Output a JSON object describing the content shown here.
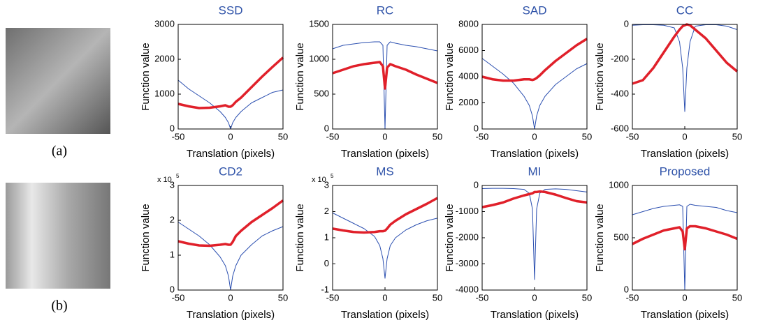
{
  "image_captions": [
    "(a)",
    "(b)"
  ],
  "chart_data": [
    {
      "type": "line",
      "title": "SSD",
      "xlabel": "Translation (pixels)",
      "ylabel": "Function value",
      "x": [
        -50,
        -40,
        -30,
        -20,
        -10,
        -5,
        -2,
        0,
        2,
        5,
        10,
        20,
        30,
        40,
        50
      ],
      "series": [
        {
          "color": "#2b4fb0",
          "values": [
            1400,
            1150,
            950,
            750,
            500,
            330,
            180,
            0,
            180,
            330,
            500,
            750,
            900,
            1050,
            1120
          ]
        },
        {
          "color": "#e0202a",
          "values": [
            720,
            650,
            600,
            610,
            650,
            680,
            640,
            640,
            680,
            780,
            900,
            1200,
            1500,
            1780,
            2050
          ]
        }
      ],
      "xlim": [
        -50,
        50
      ],
      "xticks": [
        -50,
        0,
        50
      ],
      "ylim": [
        0,
        3000
      ],
      "yticks": [
        0,
        1000,
        2000,
        3000
      ]
    },
    {
      "type": "line",
      "title": "RC",
      "xlabel": "Translation (pixels)",
      "ylabel": "Function value",
      "x": [
        -50,
        -40,
        -30,
        -20,
        -10,
        -5,
        -2,
        0,
        2,
        5,
        10,
        20,
        30,
        40,
        50
      ],
      "series": [
        {
          "color": "#2b4fb0",
          "values": [
            1150,
            1200,
            1220,
            1240,
            1250,
            1250,
            1200,
            0,
            1200,
            1250,
            1230,
            1200,
            1180,
            1150,
            1120
          ]
        },
        {
          "color": "#e0202a",
          "values": [
            800,
            850,
            900,
            930,
            950,
            960,
            900,
            580,
            880,
            930,
            900,
            850,
            780,
            720,
            660
          ]
        }
      ],
      "xlim": [
        -50,
        50
      ],
      "xticks": [
        -50,
        0,
        50
      ],
      "ylim": [
        0,
        1500
      ],
      "yticks": [
        0,
        500,
        1000,
        1500
      ]
    },
    {
      "type": "line",
      "title": "SAD",
      "xlabel": "Translation (pixels)",
      "ylabel": "Function value",
      "x": [
        -50,
        -40,
        -30,
        -20,
        -10,
        -5,
        -2,
        0,
        2,
        5,
        10,
        20,
        30,
        40,
        50
      ],
      "series": [
        {
          "color": "#2b4fb0",
          "values": [
            5400,
            4800,
            4200,
            3500,
            2500,
            1800,
            1000,
            0,
            1000,
            1800,
            2500,
            3400,
            4000,
            4600,
            5000
          ]
        },
        {
          "color": "#e0202a",
          "values": [
            4000,
            3800,
            3700,
            3700,
            3800,
            3800,
            3750,
            3800,
            3900,
            4100,
            4500,
            5200,
            5800,
            6400,
            6900
          ]
        }
      ],
      "xlim": [
        -50,
        50
      ],
      "xticks": [
        -50,
        0,
        50
      ],
      "ylim": [
        0,
        8000
      ],
      "yticks": [
        0,
        2000,
        4000,
        6000,
        8000
      ]
    },
    {
      "type": "line",
      "title": "CC",
      "xlabel": "Translation (pixels)",
      "ylabel": "Function value",
      "x": [
        -50,
        -40,
        -30,
        -20,
        -10,
        -5,
        -2,
        0,
        2,
        5,
        10,
        20,
        30,
        40,
        50
      ],
      "series": [
        {
          "color": "#2b4fb0",
          "values": [
            -5,
            -2,
            -2,
            -5,
            -20,
            -100,
            -250,
            -500,
            -250,
            -100,
            -10,
            -2,
            -2,
            -10,
            -30
          ]
        },
        {
          "color": "#e0202a",
          "values": [
            -340,
            -320,
            -250,
            -160,
            -70,
            -30,
            -10,
            -5,
            0,
            -5,
            -30,
            -80,
            -150,
            -220,
            -270
          ]
        }
      ],
      "xlim": [
        -50,
        50
      ],
      "xticks": [
        -50,
        0,
        50
      ],
      "ylim": [
        -600,
        0
      ],
      "yticks": [
        -600,
        -400,
        -200,
        0
      ]
    },
    {
      "type": "line",
      "title": "CD2",
      "xlabel": "Translation (pixels)",
      "ylabel": "Function value",
      "y_scale_label": {
        "text": "x 10",
        "exponent": "5"
      },
      "x": [
        -50,
        -40,
        -30,
        -20,
        -10,
        -5,
        -2,
        0,
        2,
        5,
        10,
        20,
        30,
        40,
        50
      ],
      "series": [
        {
          "color": "#2b4fb0",
          "values": [
            1.95,
            1.75,
            1.55,
            1.3,
            0.95,
            0.7,
            0.4,
            0,
            0.4,
            0.7,
            1.0,
            1.3,
            1.55,
            1.7,
            1.82
          ]
        },
        {
          "color": "#e0202a",
          "values": [
            1.4,
            1.33,
            1.28,
            1.27,
            1.3,
            1.32,
            1.3,
            1.3,
            1.38,
            1.55,
            1.7,
            1.95,
            2.15,
            2.35,
            2.57
          ]
        }
      ],
      "xlim": [
        -50,
        50
      ],
      "xticks": [
        -50,
        0,
        50
      ],
      "ylim": [
        0,
        3
      ],
      "yticks": [
        0,
        1,
        2,
        3
      ]
    },
    {
      "type": "line",
      "title": "MS",
      "xlabel": "Translation (pixels)",
      "ylabel": "Function value",
      "y_scale_label": {
        "text": "x 10",
        "exponent": "5"
      },
      "x": [
        -50,
        -40,
        -30,
        -20,
        -10,
        -5,
        -2,
        0,
        2,
        5,
        10,
        20,
        30,
        40,
        50
      ],
      "series": [
        {
          "color": "#2b4fb0",
          "values": [
            1.95,
            1.75,
            1.55,
            1.35,
            1.05,
            0.7,
            0.2,
            -0.55,
            0.2,
            0.7,
            1.0,
            1.3,
            1.5,
            1.65,
            1.75
          ]
        },
        {
          "color": "#e0202a",
          "values": [
            1.35,
            1.28,
            1.22,
            1.2,
            1.22,
            1.25,
            1.25,
            1.27,
            1.35,
            1.5,
            1.65,
            1.9,
            2.1,
            2.3,
            2.52
          ]
        }
      ],
      "xlim": [
        -50,
        50
      ],
      "xticks": [
        -50,
        0,
        50
      ],
      "ylim": [
        -1,
        3
      ],
      "yticks": [
        -1,
        0,
        1,
        2,
        3
      ]
    },
    {
      "type": "line",
      "title": "MI",
      "xlabel": "Translation (pixels)",
      "ylabel": "Function value",
      "x": [
        -50,
        -40,
        -30,
        -20,
        -10,
        -5,
        -2,
        0,
        2,
        5,
        10,
        20,
        30,
        40,
        50
      ],
      "series": [
        {
          "color": "#2b4fb0",
          "values": [
            -120,
            -110,
            -110,
            -120,
            -150,
            -300,
            -900,
            -3600,
            -900,
            -300,
            -150,
            -130,
            -150,
            -200,
            -250
          ]
        },
        {
          "color": "#e0202a",
          "values": [
            -830,
            -750,
            -650,
            -500,
            -380,
            -330,
            -300,
            -250,
            -250,
            -230,
            -250,
            -350,
            -480,
            -600,
            -650
          ]
        }
      ],
      "xlim": [
        -50,
        50
      ],
      "xticks": [
        -50,
        0,
        50
      ],
      "ylim": [
        -4000,
        0
      ],
      "yticks": [
        -4000,
        -3000,
        -2000,
        -1000,
        0
      ]
    },
    {
      "type": "line",
      "title": "Proposed",
      "xlabel": "Translation (pixels)",
      "ylabel": "Function value",
      "x": [
        -50,
        -40,
        -30,
        -20,
        -10,
        -5,
        -2,
        0,
        2,
        5,
        10,
        20,
        30,
        40,
        50
      ],
      "series": [
        {
          "color": "#2b4fb0",
          "values": [
            720,
            750,
            780,
            800,
            810,
            815,
            800,
            0,
            800,
            820,
            810,
            800,
            790,
            760,
            740
          ]
        },
        {
          "color": "#e0202a",
          "values": [
            440,
            490,
            530,
            570,
            590,
            600,
            560,
            390,
            590,
            610,
            610,
            590,
            560,
            530,
            490
          ]
        }
      ],
      "xlim": [
        -50,
        50
      ],
      "xticks": [
        -50,
        0,
        50
      ],
      "ylim": [
        0,
        1000
      ],
      "yticks": [
        0,
        500,
        1000
      ]
    }
  ]
}
